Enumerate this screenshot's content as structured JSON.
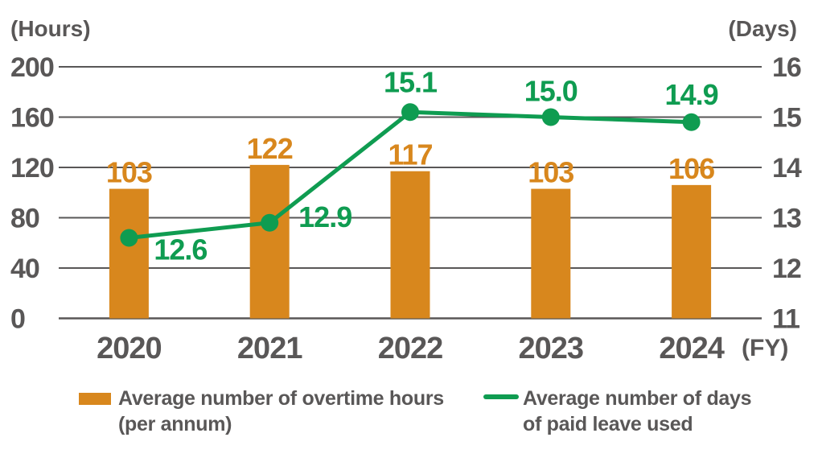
{
  "chart_data": {
    "type": "bar+line-combo",
    "categories": [
      "2020",
      "2021",
      "2022",
      "2023",
      "2024"
    ],
    "series": [
      {
        "name": "Average number of overtime hours (per annum)",
        "type": "bar",
        "axis": "left",
        "color": "#D8871D",
        "values": [
          103,
          122,
          117,
          103,
          106
        ],
        "value_labels": [
          "103",
          "122",
          "117",
          "103",
          "106"
        ]
      },
      {
        "name": "Average number of days of paid leave used",
        "type": "line",
        "axis": "right",
        "color": "#0F9C51",
        "values": [
          12.6,
          12.9,
          15.1,
          15.0,
          14.9
        ],
        "value_labels": [
          "12.6",
          "12.9",
          "15.1",
          "15.0",
          "14.9"
        ]
      }
    ],
    "left_axis": {
      "unit": "(Hours)",
      "ticks": [
        "200",
        "160",
        "120",
        "80",
        "40",
        "0"
      ],
      "min": 0,
      "max": 200
    },
    "right_axis": {
      "unit": "(Days)",
      "ticks": [
        "16",
        "15",
        "14",
        "13",
        "12",
        "11"
      ],
      "min": 11,
      "max": 16
    },
    "x_axis": {
      "unit": "(FY)"
    },
    "grid": true,
    "legend_position": "bottom"
  },
  "legend": {
    "items": [
      {
        "swatch": "bar",
        "color": "#D8871D",
        "line1": "Average number of overtime hours",
        "line2": "(per annum)"
      },
      {
        "swatch": "line",
        "color": "#0F9C51",
        "line1": "Average number of days",
        "line2": "of paid leave used"
      }
    ]
  },
  "colors": {
    "bar_orange": "#D8871D",
    "line_green": "#0F9C51",
    "text_gray": "#595757",
    "grid_gray": "#595757",
    "background": "#FFFFFF"
  }
}
